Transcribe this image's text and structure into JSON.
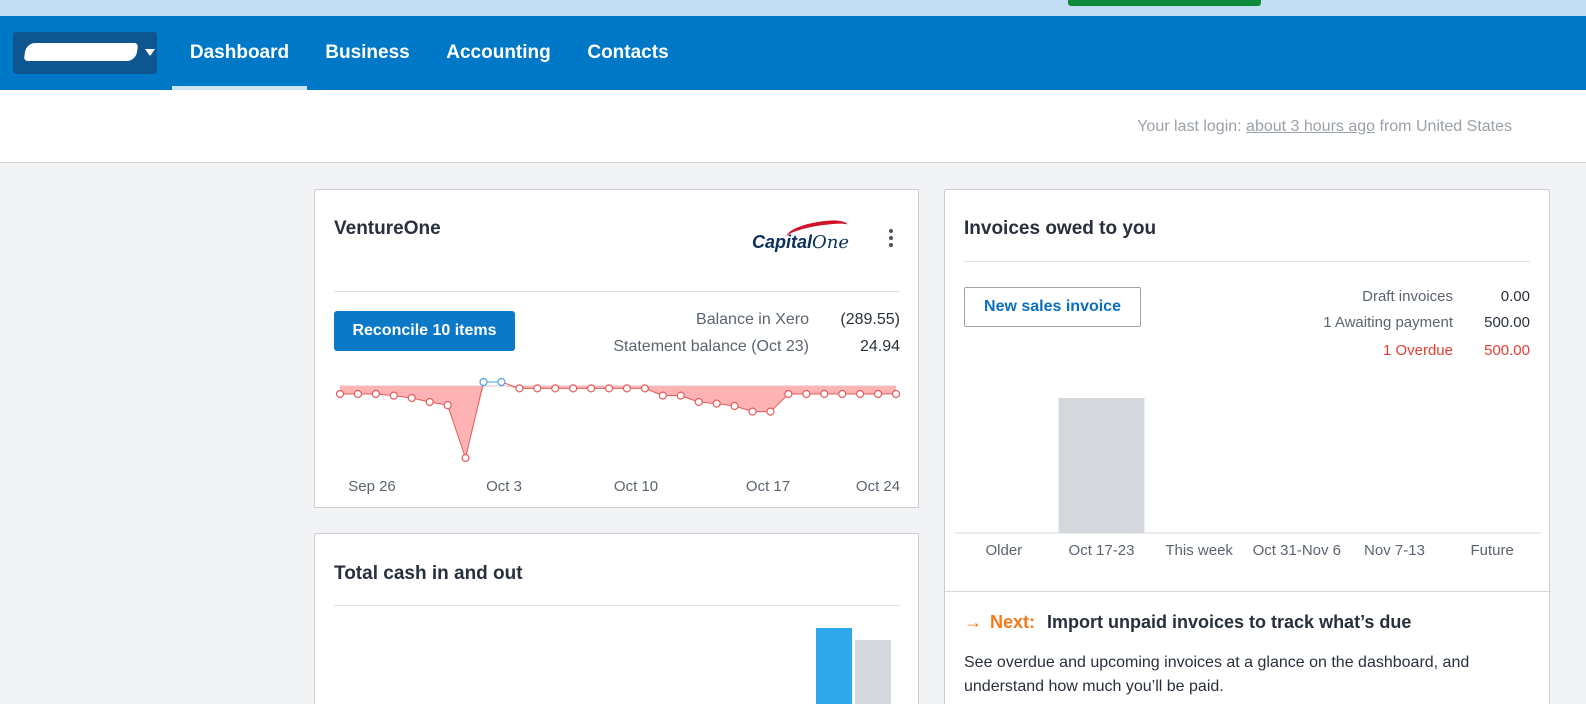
{
  "nav": {
    "tabs": [
      {
        "label": "Dashboard",
        "active": true
      },
      {
        "label": "Business",
        "active": false
      },
      {
        "label": "Accounting",
        "active": false
      },
      {
        "label": "Contacts",
        "active": false
      }
    ],
    "org_switcher_icon": "chevron-down-icon"
  },
  "login": {
    "prefix": "Your last login:",
    "link": "about 3 hours ago",
    "suffix": "from United States"
  },
  "bank_card": {
    "title": "VentureOne",
    "logo_text": "Capital",
    "logo_text_one": "One",
    "menu_icon": "kebab-menu-icon",
    "reconcile_label": "Reconcile 10 items",
    "balance_xero_label": "Balance in Xero",
    "balance_xero_value": "(289.55)",
    "statement_label": "Statement balance (Oct 23)",
    "statement_value": "24.94",
    "colors": {
      "negative_fill": "#fdb3b3",
      "negative_stroke": "#e55b5b",
      "positive_stroke": "#4aa3df"
    }
  },
  "cash_card": {
    "title": "Total cash in and out",
    "colors": {
      "in": "#2fa8ec",
      "out": "#d5d8dc"
    }
  },
  "invoices_card": {
    "title": "Invoices owed to you",
    "new_invoice_label": "New sales invoice",
    "summary": [
      {
        "label": "Draft invoices",
        "value": "0.00",
        "status": "normal"
      },
      {
        "label": "1 Awaiting payment",
        "value": "500.00",
        "status": "normal"
      },
      {
        "label": "1 Overdue",
        "value": "500.00",
        "status": "overdue"
      }
    ],
    "next_label": "Next:",
    "next_icon": "arrow-right-icon",
    "next_title": "Import unpaid invoices to track what’s due",
    "next_desc": "See overdue and upcoming invoices at a glance on the dashboard, and understand how much you’ll be paid."
  },
  "chart_data": [
    {
      "type": "line",
      "x_tick_labels": [
        "Sep 26",
        "Oct 3",
        "Oct 10",
        "Oct 17",
        "Oct 24"
      ],
      "series": [
        {
          "values": [
            -10,
            -10,
            -10,
            -12,
            -15,
            -20,
            -24,
            -90,
            5,
            5,
            -3,
            -3,
            -3,
            -3,
            -3,
            -3,
            -3,
            -3,
            -12,
            -12,
            -20,
            -22,
            -25,
            -32,
            -32,
            -10,
            -10,
            -10,
            -10,
            -10,
            -10,
            -10
          ]
        }
      ],
      "ylim": [
        -100,
        10
      ]
    },
    {
      "type": "bar",
      "categories": [
        "Older",
        "Oct 17-23",
        "This week",
        "Oct 31-Nov 6",
        "Nov 7-13",
        "Future"
      ],
      "values": [
        0,
        500,
        0,
        0,
        0,
        0
      ],
      "ylim": [
        0,
        500
      ]
    }
  ]
}
